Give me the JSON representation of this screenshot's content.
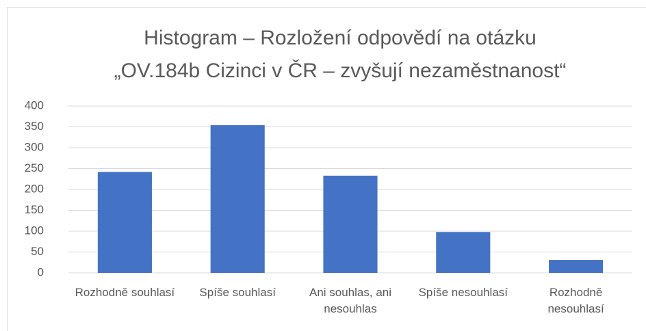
{
  "chart_data": {
    "type": "bar",
    "title": [
      "Histogram – Rozložení odpovědí na otázku",
      "„OV.184b Cizinci v ČR – zvyšují nezaměstnanost“"
    ],
    "categories": [
      "Rozhodně souhlasí",
      "Spíše souhlasí",
      "Ani souhlas, ani nesouhlas",
      "Spíše nesouhlasí",
      "Rozhodně nesouhlasí"
    ],
    "values": [
      242,
      354,
      233,
      98,
      31
    ],
    "color": "#4472c4",
    "ylim": [
      0,
      400
    ],
    "yticks": [
      0,
      50,
      100,
      150,
      200,
      250,
      300,
      350,
      400
    ],
    "grid": true
  }
}
